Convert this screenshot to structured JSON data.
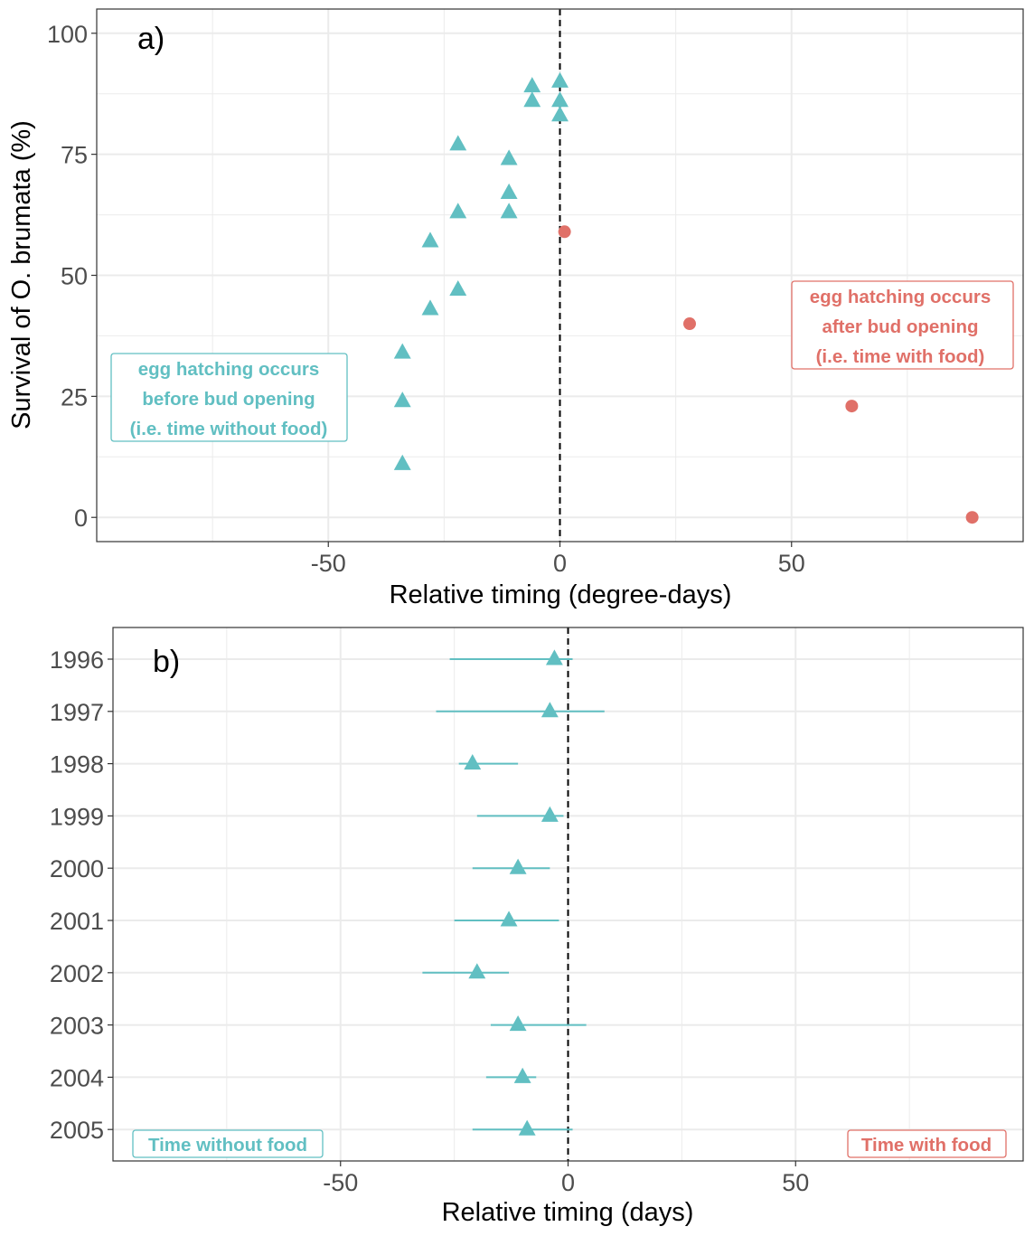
{
  "colors": {
    "without_food": "#61BFC2",
    "with_food": "#E07068",
    "grid": "#EBEBEB",
    "axis_text": "#4D4D4D"
  },
  "chart_data": [
    {
      "type": "scatter",
      "panel_label": "a)",
      "xlabel": "Relative timing (degree-days)",
      "ylabel": "Survival of O. brumata (%)",
      "xlim": [
        -100,
        100
      ],
      "ylim": [
        -5,
        105
      ],
      "xticks": [
        -50,
        0,
        50
      ],
      "xtick_labels": [
        "-50",
        "0",
        "50"
      ],
      "yticks": [
        0,
        25,
        50,
        75,
        100
      ],
      "ytick_labels": [
        "0",
        "25",
        "50",
        "75",
        "100"
      ],
      "grid": true,
      "reference_line_x": 0,
      "series": [
        {
          "marker": "triangle",
          "color": "#61BFC2",
          "points": [
            {
              "x": 0,
              "y": 90
            },
            {
              "x": -6,
              "y": 89
            },
            {
              "x": -6,
              "y": 86
            },
            {
              "x": 0,
              "y": 86
            },
            {
              "x": 0,
              "y": 83
            },
            {
              "x": -22,
              "y": 77
            },
            {
              "x": -11,
              "y": 74
            },
            {
              "x": -11,
              "y": 67
            },
            {
              "x": -22,
              "y": 63
            },
            {
              "x": -11,
              "y": 63
            },
            {
              "x": -28,
              "y": 57
            },
            {
              "x": -22,
              "y": 47
            },
            {
              "x": -28,
              "y": 43
            },
            {
              "x": -34,
              "y": 34
            },
            {
              "x": -34,
              "y": 24
            },
            {
              "x": -34,
              "y": 11
            }
          ]
        },
        {
          "marker": "circle",
          "color": "#E07068",
          "points": [
            {
              "x": 1,
              "y": 59
            },
            {
              "x": 28,
              "y": 40
            },
            {
              "x": 63,
              "y": 23
            },
            {
              "x": 89,
              "y": 0
            }
          ]
        }
      ],
      "annotations": [
        {
          "lines": [
            "egg hatching occurs",
            "before bud opening",
            "(i.e. time without food)"
          ],
          "color": "#61BFC2"
        },
        {
          "lines": [
            "egg hatching occurs",
            "after bud opening",
            "(i.e. time with food)"
          ],
          "color": "#E07068"
        }
      ]
    },
    {
      "type": "errorbar",
      "panel_label": "b)",
      "xlabel": "Relative timing (days)",
      "ylabel": "",
      "xlim": [
        -100,
        100
      ],
      "xticks": [
        -50,
        0,
        50
      ],
      "xtick_labels": [
        "-50",
        "0",
        "50"
      ],
      "categories": [
        "1996",
        "1997",
        "1998",
        "1999",
        "2000",
        "2001",
        "2002",
        "2003",
        "2004",
        "2005"
      ],
      "grid": true,
      "reference_line_x": 0,
      "series": [
        {
          "marker": "triangle",
          "color": "#61BFC2",
          "values": [
            -3,
            -4,
            -21,
            -4,
            -11,
            -13,
            -20,
            -11,
            -10,
            -9
          ],
          "lower": [
            -26,
            -29,
            -24,
            -20,
            -21,
            -25,
            -32,
            -17,
            -18,
            -21
          ],
          "upper": [
            1,
            8,
            -11,
            -1,
            -4,
            -2,
            -13,
            4,
            -7,
            1
          ]
        }
      ],
      "annotations": [
        {
          "text": "Time without food",
          "color": "#61BFC2"
        },
        {
          "text": "Time with food",
          "color": "#E07068"
        }
      ]
    }
  ]
}
